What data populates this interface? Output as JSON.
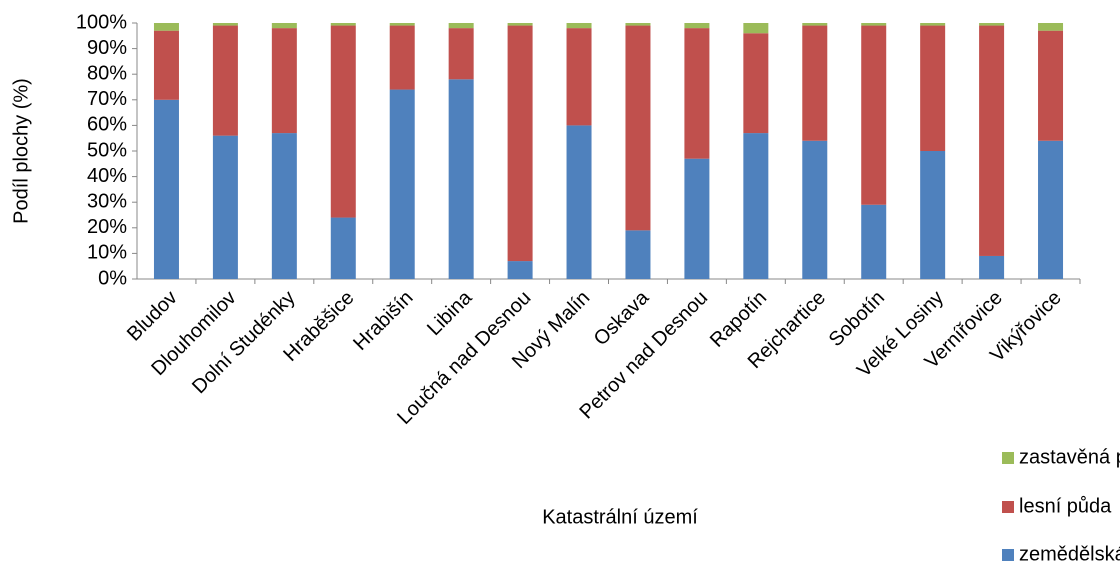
{
  "chart_data": {
    "type": "stacked-bar",
    "y_label": "Podíl plochy (%)",
    "x_label": "Katastrální území",
    "categories": [
      "Bludov",
      "Dlouhomilov",
      "Dolní Studénky",
      "Hraběšice",
      "Hrabišín",
      "Libina",
      "Loučná nad Desnou",
      "Nový Malín",
      "Oskava",
      "Petrov nad Desnou",
      "Rapotín",
      "Rejchartice",
      "Sobotín",
      "Velké Losiny",
      "Vernířovice",
      "Vikýřovice"
    ],
    "series": [
      {
        "name": "zemědělská půda",
        "color": "#4f81bd",
        "values": [
          70,
          56,
          57,
          24,
          74,
          78,
          7,
          60,
          19,
          47,
          57,
          54,
          29,
          50,
          9,
          54
        ]
      },
      {
        "name": "lesní půda",
        "color": "#c0504d",
        "values": [
          27,
          43,
          41,
          75,
          25,
          20,
          92,
          38,
          80,
          51,
          39,
          45,
          70,
          49,
          90,
          43
        ]
      },
      {
        "name": "zastavěná plocha",
        "color": "#9bbb59",
        "values": [
          3,
          1,
          2,
          1,
          1,
          2,
          1,
          2,
          1,
          2,
          4,
          1,
          1,
          1,
          1,
          3
        ]
      }
    ],
    "ylim": [
      0,
      100
    ],
    "yticks": [
      {
        "value": 0,
        "label": "0%"
      },
      {
        "value": 10,
        "label": "10%"
      },
      {
        "value": 20,
        "label": "20%"
      },
      {
        "value": 30,
        "label": "30%"
      },
      {
        "value": 40,
        "label": "40%"
      },
      {
        "value": 50,
        "label": "50%"
      },
      {
        "value": 60,
        "label": "60%"
      },
      {
        "value": 70,
        "label": "70%"
      },
      {
        "value": 80,
        "label": "80%"
      },
      {
        "value": 90,
        "label": "90%"
      },
      {
        "value": 100,
        "label": "100%"
      }
    ],
    "grid": false,
    "legend": "bottom-right"
  }
}
